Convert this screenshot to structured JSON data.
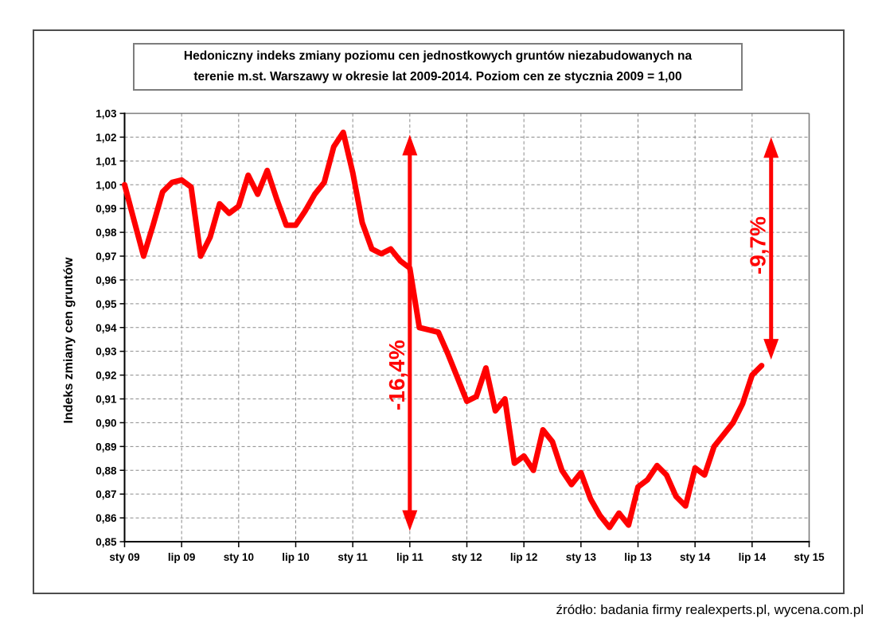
{
  "title": {
    "line1": "Hedoniczny indeks zmiany poziomu cen jednostkowych gruntów niezabudowanych na",
    "line2": "terenie m.st. Warszawy w okresie lat 2009-2014. Poziom cen ze stycznia 2009 = 1,00"
  },
  "y_axis": {
    "label": "Indeks zmiany cen gruntów",
    "ticks": [
      "1,03",
      "1,02",
      "1,01",
      "1,00",
      "0,99",
      "0,98",
      "0,97",
      "0,96",
      "0,95",
      "0,94",
      "0,93",
      "0,92",
      "0,91",
      "0,90",
      "0,89",
      "0,88",
      "0,87",
      "0,86",
      "0,85"
    ]
  },
  "x_axis": {
    "ticks": [
      "sty 09",
      "lip 09",
      "sty 10",
      "lip 10",
      "sty 11",
      "lip 11",
      "sty 12",
      "lip 12",
      "sty 13",
      "lip 13",
      "sty 14",
      "lip 14",
      "sty 15"
    ]
  },
  "annotations": [
    {
      "label": "-16,4%",
      "month": 30,
      "top_value": 1.021,
      "bottom_value": 0.8545,
      "label_center_value": 0.92
    },
    {
      "label": "-9,7%",
      "month": 68,
      "top_value": 1.02,
      "bottom_value": 0.9265,
      "label_center_value": 0.9745
    }
  ],
  "source": "źródło: badania firmy realexperts.pl, wycena.com.pl",
  "colors": {
    "series_red": "#ff0000",
    "grid_gray": "#8a8a8a",
    "axis_black": "#000000",
    "plot_border_gray": "#7d7d7d"
  },
  "chart_data": {
    "type": "line",
    "title": "Hedoniczny indeks zmiany poziomu cen jednostkowych gruntów niezabudowanych na terenie m.st. Warszawy w okresie lat 2009-2014. Poziom cen ze stycznia 2009 = 1,00",
    "xlabel": "",
    "ylabel": "Indeks zmiany cen gruntów",
    "ylim": [
      0.85,
      1.03
    ],
    "ytick_step": 0.01,
    "x_start": "sty 2009",
    "x_frequency": "monthly",
    "x_axis_span_months": 72,
    "x_tick_labels": [
      "sty 09",
      "lip 09",
      "sty 10",
      "lip 10",
      "sty 11",
      "lip 11",
      "sty 12",
      "lip 12",
      "sty 13",
      "lip 13",
      "sty 14",
      "lip 14",
      "sty 15"
    ],
    "grid": true,
    "legend": false,
    "series": [
      {
        "name": "Hedoniczny indeks zmiany cen gruntów",
        "color": "#ff0000",
        "values": [
          1.0,
          0.985,
          0.97,
          0.983,
          0.997,
          1.001,
          1.002,
          0.999,
          0.97,
          0.978,
          0.992,
          0.988,
          0.991,
          1.004,
          0.996,
          1.006,
          0.994,
          0.983,
          0.983,
          0.989,
          0.996,
          1.001,
          1.016,
          1.022,
          1.005,
          0.984,
          0.973,
          0.971,
          0.973,
          0.968,
          0.965,
          0.94,
          0.939,
          0.938,
          0.929,
          0.919,
          0.909,
          0.911,
          0.923,
          0.905,
          0.91,
          0.883,
          0.886,
          0.88,
          0.897,
          0.892,
          0.88,
          0.874,
          0.879,
          0.868,
          0.861,
          0.856,
          0.862,
          0.857,
          0.873,
          0.876,
          0.882,
          0.878,
          0.869,
          0.865,
          0.881,
          0.878,
          0.89,
          0.895,
          0.9,
          0.908,
          0.92,
          0.924
        ]
      }
    ]
  }
}
